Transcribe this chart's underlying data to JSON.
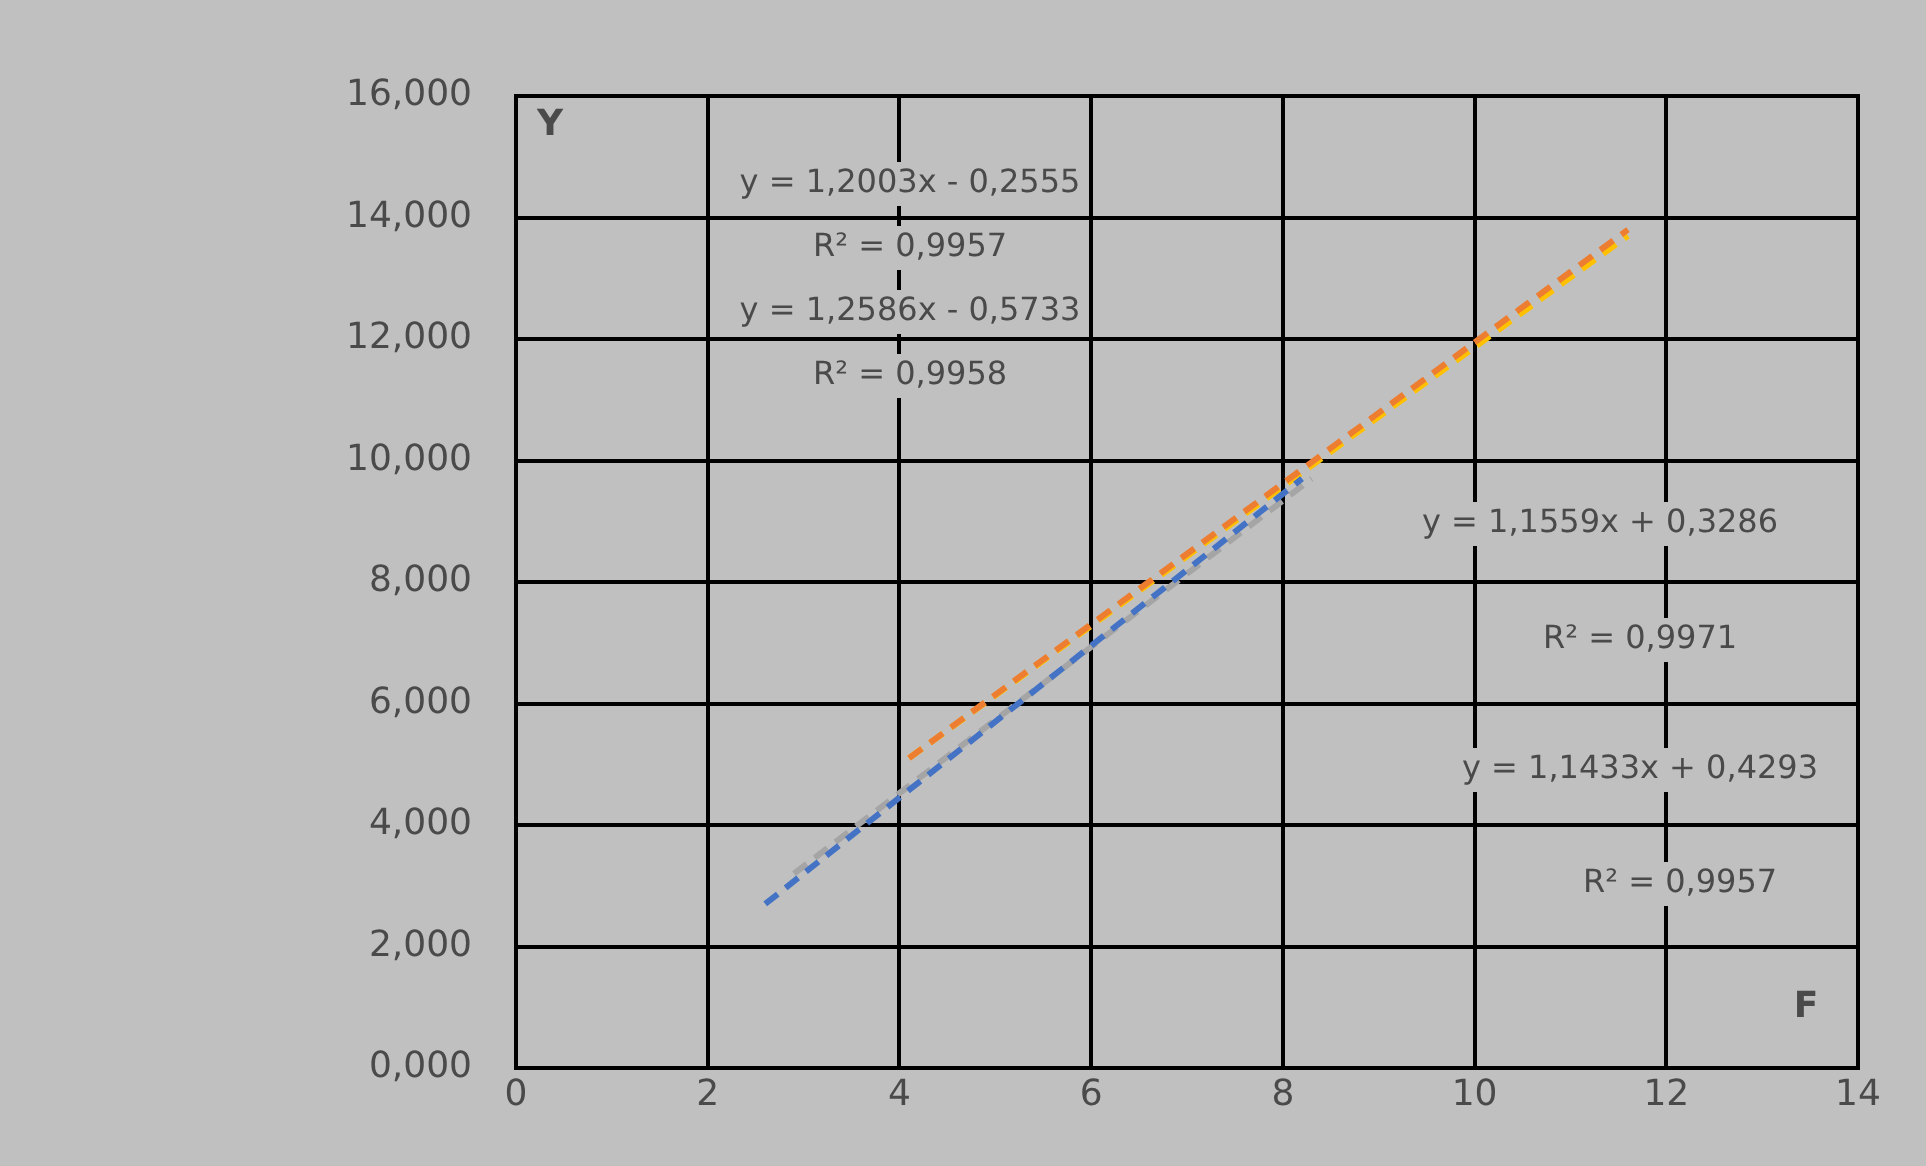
{
  "chart_data": {
    "type": "line",
    "xlabel": "F",
    "ylabel": "Y",
    "xlim": [
      0,
      14
    ],
    "xticks": [
      0,
      2,
      4,
      6,
      8,
      10,
      12,
      14
    ],
    "ylim": [
      0,
      16
    ],
    "yticks": [
      {
        "value": 0,
        "label": "0,000"
      },
      {
        "value": 2,
        "label": "2,000"
      },
      {
        "value": 4,
        "label": "4,000"
      },
      {
        "value": 6,
        "label": "6,000"
      },
      {
        "value": 8,
        "label": "8,000"
      },
      {
        "value": 10,
        "label": "10,000"
      },
      {
        "value": 12,
        "label": "12,000"
      },
      {
        "value": 14,
        "label": "14,000"
      },
      {
        "value": 16,
        "label": "16,000"
      }
    ],
    "grid": true,
    "legend": false,
    "marker": "none",
    "line_style": "dashed",
    "series": [
      {
        "color": "#4472c4",
        "x": [
          2.6,
          8.2
        ],
        "values": [
          2.7,
          9.7
        ]
      },
      {
        "color": "#a5a5a5",
        "x": [
          2.9,
          8.3
        ],
        "values": [
          3.2,
          9.7
        ]
      },
      {
        "color": "#ed7d31",
        "x": [
          4.1,
          11.6
        ],
        "values": [
          5.1,
          13.8
        ]
      },
      {
        "color": "#ffc000",
        "x": [
          4.1,
          11.6
        ],
        "values": [
          5.1,
          13.7
        ]
      }
    ],
    "annotations": [
      "y = 1,2003x - 0,2555",
      "R² = 0,9957",
      "y = 1,2586x - 0,5733",
      "R² = 0,9958",
      "y = 1,1559x + 0,3286",
      "R² = 0,9971",
      "y = 1,1433x + 0,4293",
      "R² = 0,9957"
    ]
  }
}
